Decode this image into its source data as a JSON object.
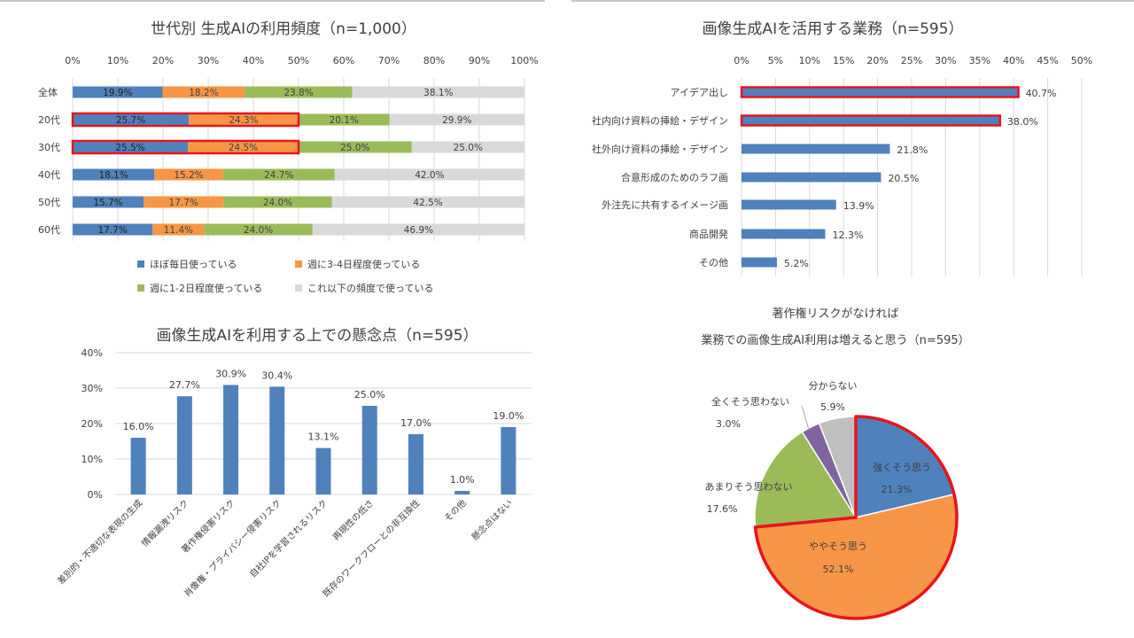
{
  "colors": {
    "blue": "#4f81bd",
    "orange": "#f79646",
    "green": "#9bbb59",
    "gray": "#d9d9d9",
    "purple": "#8064a2",
    "pie_gray": "#bfbfbf",
    "highlight": "#e8141b",
    "grid": "#d9d9d9",
    "text": "#404040"
  },
  "chart_data": [
    {
      "type": "bar",
      "orientation": "horizontal-stacked-100",
      "title": "世代別 生成AIの利用頻度（n=1,000）",
      "xticks": [
        "0%",
        "10%",
        "20%",
        "30%",
        "40%",
        "50%",
        "60%",
        "70%",
        "80%",
        "90%",
        "100%"
      ],
      "categories": [
        "全体",
        "20代",
        "30代",
        "40代",
        "50代",
        "60代"
      ],
      "series": [
        {
          "name": "ほぼ毎日使っている",
          "values": [
            19.9,
            25.7,
            25.5,
            18.1,
            15.7,
            17.7
          ]
        },
        {
          "name": "週に3-4日程度使っている",
          "values": [
            18.2,
            24.3,
            24.5,
            15.2,
            17.7,
            11.4
          ]
        },
        {
          "name": "週に1-2日程度使っている",
          "values": [
            23.8,
            20.1,
            25.0,
            24.7,
            24.0,
            24.0
          ]
        },
        {
          "name": "これ以下の頻度で使っている",
          "values": [
            38.1,
            29.9,
            25.0,
            42.0,
            42.5,
            46.9
          ]
        }
      ],
      "labels": [
        [
          "19.9%",
          "18.2%",
          "23.8%",
          "38.1%"
        ],
        [
          "25.7%",
          "24.3%",
          "20.1%",
          "29.9%"
        ],
        [
          "25.5%",
          "24.5%",
          "25.0%",
          "25.0%"
        ],
        [
          "18.1%",
          "15.2%",
          "24.7%",
          "42.0%"
        ],
        [
          "15.7%",
          "17.7%",
          "24.0%",
          "42.5%"
        ],
        [
          "17.7%",
          "11.4%",
          "24.0%",
          "46.9%"
        ]
      ],
      "highlighted_categories": [
        "20代",
        "30代"
      ],
      "legend": "bottom"
    },
    {
      "type": "bar",
      "orientation": "horizontal",
      "title": "画像生成AIを活用する業務（n=595）",
      "xticks": [
        "0%",
        "5%",
        "10%",
        "15%",
        "20%",
        "25%",
        "30%",
        "35%",
        "40%",
        "45%",
        "50%"
      ],
      "xlim": [
        0,
        50
      ],
      "categories": [
        "アイデア出し",
        "社内向け資料の挿絵・デザイン",
        "社外向け資料の挿絵・デザイン",
        "合意形成のためのラフ画",
        "外注先に共有するイメージ画",
        "商品開発",
        "その他"
      ],
      "values": [
        40.7,
        38.0,
        21.8,
        20.5,
        13.9,
        12.3,
        5.2
      ],
      "labels": [
        "40.7%",
        "38.0%",
        "21.8%",
        "20.5%",
        "13.9%",
        "12.3%",
        "5.2%"
      ],
      "highlighted_categories": [
        "アイデア出し",
        "社内向け資料の挿絵・デザイン"
      ]
    },
    {
      "type": "bar",
      "orientation": "vertical",
      "title": "画像生成AIを利用する上での懸念点（n=595）",
      "yticks": [
        "40%",
        "30%",
        "20%",
        "10%",
        "0%"
      ],
      "ylim": [
        0,
        40
      ],
      "categories": [
        "差別的・不適切な表現の生成",
        "情報漏洩リスク",
        "著作権侵害リスク",
        "肖像権・プライバシー侵害リスク",
        "自社IPを学習されるリスク",
        "再現性の低さ",
        "既存のワークフローとの非互換性",
        "その他",
        "懸念点はない"
      ],
      "values": [
        16.0,
        27.7,
        30.9,
        30.4,
        13.1,
        25.0,
        17.0,
        1.0,
        19.0
      ],
      "labels": [
        "16.0%",
        "27.7%",
        "30.9%",
        "30.4%",
        "13.1%",
        "25.0%",
        "17.0%",
        "1.0%",
        "19.0%"
      ]
    },
    {
      "type": "pie",
      "title_line1": "著作権リスクがなければ",
      "title_line2": "業務での画像生成AI利用は増えると思う（n=595）",
      "slices": [
        {
          "label": "強くそう思う",
          "value": 21.3,
          "text": "21.3%"
        },
        {
          "label": "ややそう思う",
          "value": 52.1,
          "text": "52.1%"
        },
        {
          "label": "あまりそう思わない",
          "value": 17.6,
          "text": "17.6%"
        },
        {
          "label": "全くそう思わない",
          "value": 3.0,
          "text": "3.0%"
        },
        {
          "label": "分からない",
          "value": 5.9,
          "text": "5.9%"
        }
      ],
      "highlighted_slices": [
        "強くそう思う",
        "ややそう思う"
      ]
    }
  ]
}
